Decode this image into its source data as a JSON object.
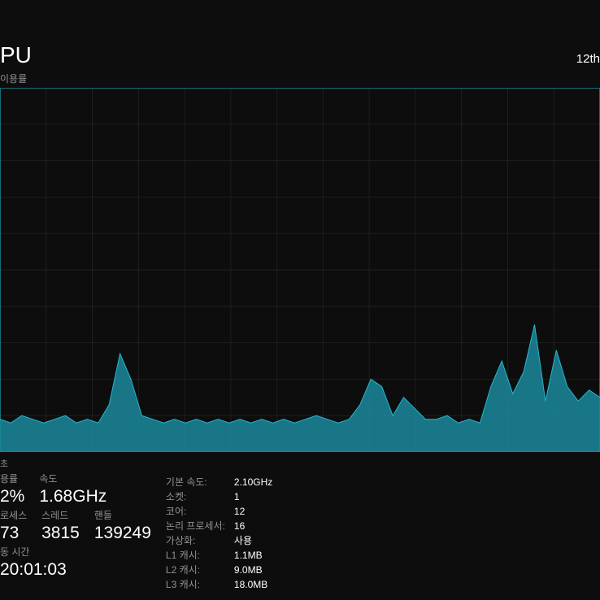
{
  "header": {
    "title": "PU",
    "subtitle": "이용률",
    "right_label": "12th"
  },
  "chart": {
    "type": "area",
    "background_color": "#0d0d0d",
    "grid_color": "#1f1f1f",
    "border_color": "#186d7a",
    "fill_color": "#1b8a9e",
    "line_color": "#29b7cf",
    "fill_opacity": 0.85,
    "ylim": [
      0,
      100
    ],
    "grid_rows": 10,
    "grid_cols": 13,
    "values": [
      9,
      8,
      10,
      9,
      8,
      9,
      10,
      8,
      9,
      8,
      13,
      27,
      20,
      10,
      9,
      8,
      9,
      8,
      9,
      8,
      9,
      8,
      9,
      8,
      9,
      8,
      9,
      8,
      9,
      10,
      9,
      8,
      9,
      13,
      20,
      18,
      10,
      15,
      12,
      9,
      9,
      10,
      8,
      9,
      8,
      18,
      25,
      16,
      22,
      35,
      14,
      28,
      18,
      14,
      17,
      15
    ]
  },
  "stats": {
    "small_label": "초",
    "utilization": {
      "label": "용률",
      "value": "2%"
    },
    "speed": {
      "label": "속도",
      "value": "1.68GHz"
    },
    "processes": {
      "label": "로세스",
      "value": "73"
    },
    "threads": {
      "label": "스레드",
      "value": "3815"
    },
    "handles": {
      "label": "핸들",
      "value": "139249"
    },
    "uptime": {
      "label": "동 시간",
      "value": "20:01:03"
    }
  },
  "details": {
    "base_speed": {
      "label": "기본 속도:",
      "value": "2.10GHz"
    },
    "sockets": {
      "label": "소켓:",
      "value": "1"
    },
    "cores": {
      "label": "코어:",
      "value": "12"
    },
    "logical": {
      "label": "논리 프로세서:",
      "value": "16"
    },
    "virtualization": {
      "label": "가상화:",
      "value": "사용"
    },
    "l1": {
      "label": "L1 캐시:",
      "value": "1.1MB"
    },
    "l2": {
      "label": "L2 캐시:",
      "value": "9.0MB"
    },
    "l3": {
      "label": "L3 캐시:",
      "value": "18.0MB"
    }
  }
}
